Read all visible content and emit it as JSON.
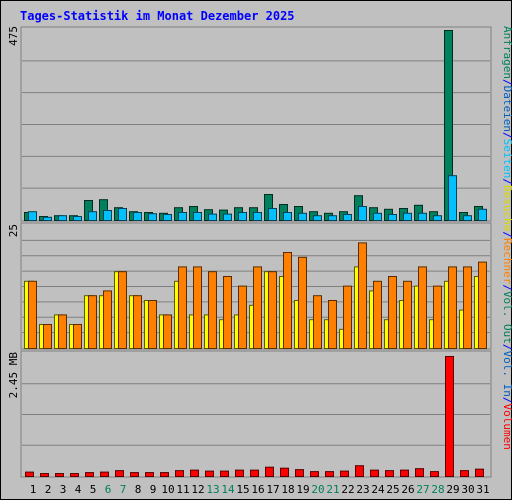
{
  "chart_data": [
    {
      "type": "bar",
      "title": "Tages-Statistik im Monat Dezember 2025",
      "ytick": "475",
      "ylim": [
        0,
        475
      ],
      "legend": [
        "Anfragen",
        "Dateien",
        "Seiten"
      ],
      "series": [
        {
          "name": "Anfragen",
          "color": "#00805c",
          "values": [
            20,
            10,
            12,
            12,
            50,
            52,
            32,
            22,
            20,
            18,
            32,
            35,
            27,
            26,
            32,
            32,
            65,
            40,
            35,
            22,
            18,
            22,
            62,
            32,
            28,
            30,
            38,
            22,
            475,
            20,
            35
          ]
        },
        {
          "name": "Dateien",
          "color": "#00c0ff",
          "values": [
            22,
            8,
            12,
            10,
            22,
            25,
            30,
            20,
            17,
            15,
            20,
            20,
            16,
            16,
            20,
            20,
            30,
            20,
            18,
            12,
            12,
            15,
            35,
            18,
            15,
            18,
            18,
            12,
            112,
            12,
            28
          ]
        }
      ]
    },
    {
      "type": "bar",
      "ytick": "25",
      "ylim": [
        0,
        25
      ],
      "legend": [
        "Rechner",
        "Besuche"
      ],
      "series": [
        {
          "name": "Besuche",
          "color": "#ffff00",
          "values": [
            14,
            5,
            7,
            5,
            11,
            11,
            16,
            11,
            10,
            7,
            14,
            7,
            7,
            6,
            7,
            9,
            16,
            15,
            10,
            6,
            6,
            4,
            17,
            12,
            6,
            10,
            13,
            6,
            14,
            8,
            15
          ]
        },
        {
          "name": "Rechner",
          "color": "#ff8000",
          "values": [
            14,
            5,
            7,
            5,
            11,
            12,
            16,
            11,
            10,
            7,
            17,
            17,
            16,
            15,
            13,
            17,
            16,
            20,
            19,
            11,
            10,
            13,
            22,
            14,
            15,
            14,
            17,
            13,
            17,
            17,
            18
          ]
        }
      ]
    },
    {
      "type": "bar",
      "ytick": "2.45 MB",
      "ylim": [
        0,
        2.45
      ],
      "legend": [
        "Volumen",
        "Vol. In",
        "Vol. Out"
      ],
      "series": [
        {
          "name": "Volumen",
          "color": "#ff0000",
          "values": [
            0.09,
            0.06,
            0.06,
            0.06,
            0.08,
            0.09,
            0.12,
            0.08,
            0.08,
            0.08,
            0.12,
            0.13,
            0.11,
            0.11,
            0.13,
            0.13,
            0.19,
            0.17,
            0.14,
            0.1,
            0.1,
            0.11,
            0.22,
            0.13,
            0.12,
            0.13,
            0.16,
            0.1,
            2.45,
            0.12,
            0.15
          ]
        }
      ]
    }
  ],
  "x_labels": [
    "1",
    "2",
    "3",
    "4",
    "5",
    "6",
    "7",
    "8",
    "9",
    "10",
    "11",
    "12",
    "13",
    "14",
    "15",
    "16",
    "17",
    "18",
    "19",
    "20",
    "21",
    "22",
    "23",
    "24",
    "25",
    "26",
    "27",
    "28",
    "29",
    "30",
    "31"
  ],
  "weekend_days": [
    6,
    7,
    13,
    14,
    20,
    21,
    27,
    28
  ],
  "label_color": "#000000",
  "weekend_color": "#00805c",
  "title_color": "#0000ff",
  "separator_color": "#0000ff",
  "legend_colors": {
    "Anfragen": "#00805c",
    "Dateien": "#0060c0",
    "Seiten": "#00c0ff",
    "Besuche": "#d8d800",
    "Rechner": "#ff8000",
    "Out": "#00805c",
    "Vol. In": "#0060c0",
    "Volumen": "#ff0000"
  }
}
